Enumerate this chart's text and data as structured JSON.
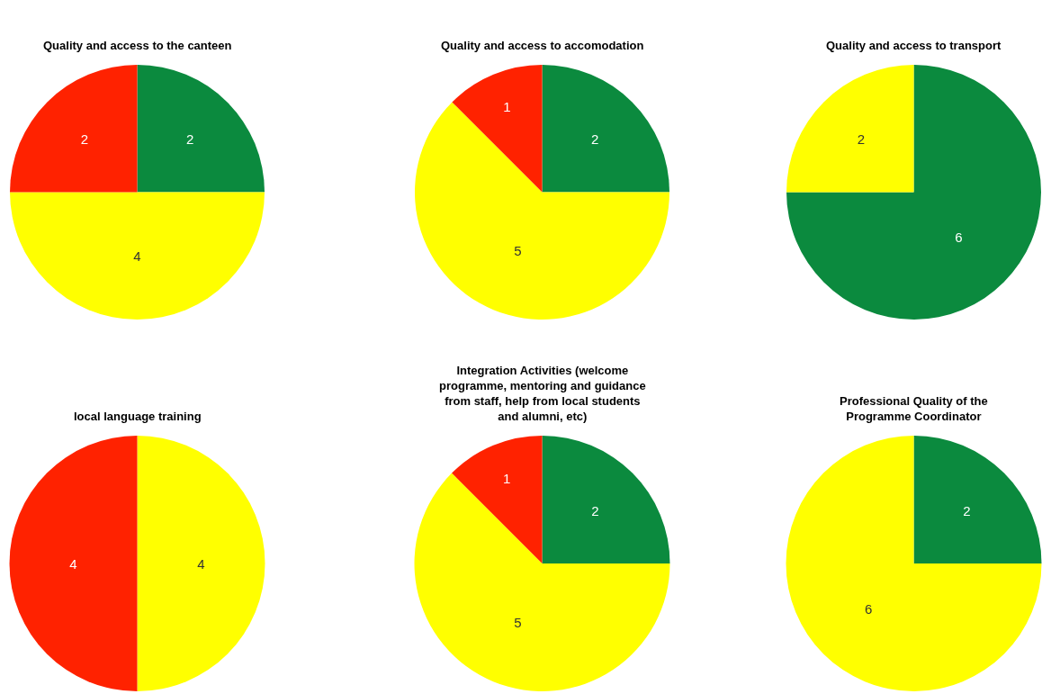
{
  "chart_data": [
    {
      "type": "pie",
      "title": "Quality and access to the canteen",
      "categories": [
        null,
        null,
        null
      ],
      "values": [
        2,
        4,
        2
      ],
      "colors": [
        "#0b8a3e",
        "#ffff00",
        "#ff2200"
      ],
      "data_labels": true
    },
    {
      "type": "pie",
      "title": "Quality and access to accomodation",
      "categories": [
        null,
        null,
        null
      ],
      "values": [
        2,
        5,
        1
      ],
      "colors": [
        "#0b8a3e",
        "#ffff00",
        "#ff2200"
      ],
      "data_labels": true
    },
    {
      "type": "pie",
      "title": "Quality and access to transport",
      "categories": [
        null,
        null
      ],
      "values": [
        6,
        2
      ],
      "colors": [
        "#0b8a3e",
        "#ffff00"
      ],
      "data_labels": true
    },
    {
      "type": "pie",
      "title": "local language training",
      "categories": [
        null,
        null
      ],
      "values": [
        4,
        4
      ],
      "colors": [
        "#ffff00",
        "#ff2200"
      ],
      "data_labels": true
    },
    {
      "type": "pie",
      "title": "Integration Activities (welcome programme, mentoring and guidance from staff, help from local students and alumni, etc)",
      "categories": [
        null,
        null,
        null
      ],
      "values": [
        2,
        5,
        1
      ],
      "colors": [
        "#0b8a3e",
        "#ffff00",
        "#ff2200"
      ],
      "data_labels": true
    },
    {
      "type": "pie",
      "title": "Professional Quality of the Programme Coordinator",
      "categories": [
        null,
        null
      ],
      "values": [
        2,
        6
      ],
      "colors": [
        "#0b8a3e",
        "#ffff00"
      ],
      "data_labels": true
    }
  ]
}
